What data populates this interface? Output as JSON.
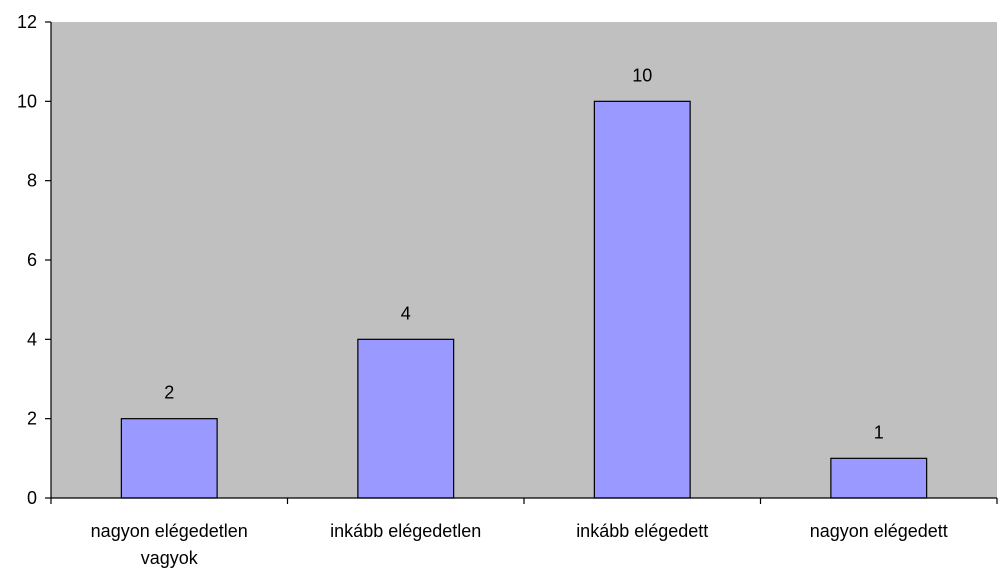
{
  "colors": {
    "plot_background": "#c0c0c0",
    "bar_fill": "#9999ff",
    "bar_stroke": "#000000",
    "axis": "#000000",
    "page_background": "#ffffff"
  },
  "chart_data": {
    "type": "bar",
    "categories": [
      "nagyon elégedetlen vagyok",
      "inkább elégedetlen",
      "inkább elégedett",
      "nagyon elégedett"
    ],
    "category_label_lines": [
      [
        "nagyon elégedetlen",
        "vagyok"
      ],
      [
        "inkább elégedetlen"
      ],
      [
        "inkább elégedett"
      ],
      [
        "nagyon elégedett"
      ]
    ],
    "values": [
      2,
      4,
      10,
      1
    ],
    "data_labels": [
      "2",
      "4",
      "10",
      "1"
    ],
    "title": "",
    "xlabel": "",
    "ylabel": "",
    "ylim": [
      0,
      12
    ],
    "y_ticks": [
      0,
      2,
      4,
      6,
      8,
      10,
      12
    ],
    "y_tick_labels": [
      "0",
      "2",
      "4",
      "6",
      "8",
      "10",
      "12"
    ],
    "grid": false,
    "legend": "none"
  }
}
